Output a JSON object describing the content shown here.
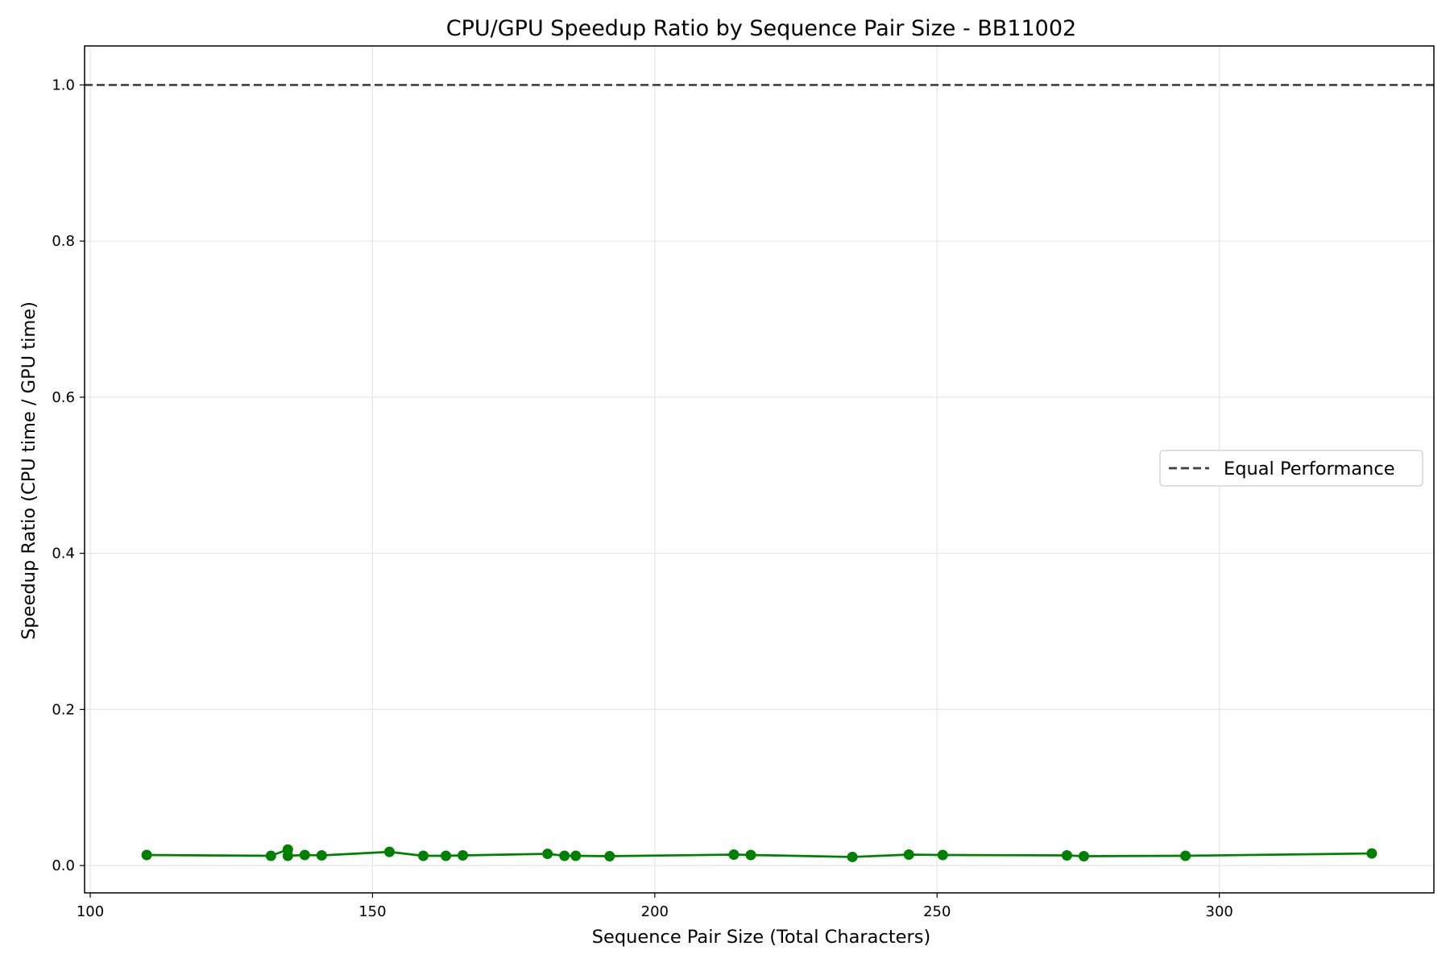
{
  "chart_data": {
    "type": "line",
    "title": "CPU/GPU Speedup Ratio by Sequence Pair Size - BB11002",
    "xlabel": "Sequence Pair Size (Total Characters)",
    "ylabel": "Speedup Ratio (CPU time / GPU time)",
    "xlim": [
      99,
      338
    ],
    "ylim": [
      -0.035,
      1.05
    ],
    "xticks": [
      100,
      150,
      200,
      250,
      300
    ],
    "xtick_labels": [
      "100",
      "150",
      "200",
      "250",
      "300"
    ],
    "yticks": [
      0.0,
      0.2,
      0.4,
      0.6,
      0.8,
      1.0
    ],
    "ytick_labels": [
      "0.0",
      "0.2",
      "0.4",
      "0.6",
      "0.8",
      "1.0"
    ],
    "grid": true,
    "legend_position": "center-right",
    "series": [
      {
        "color": "#008000",
        "marker": "circle",
        "x": [
          110,
          132,
          135,
          135,
          138,
          141,
          153,
          159,
          163,
          166,
          181,
          184,
          186,
          192,
          214,
          217,
          235,
          245,
          251,
          273,
          276,
          294,
          327
        ],
        "y": [
          0.0135,
          0.0125,
          0.0205,
          0.0125,
          0.0135,
          0.013,
          0.0175,
          0.0125,
          0.0125,
          0.013,
          0.015,
          0.0125,
          0.0125,
          0.012,
          0.014,
          0.0135,
          0.011,
          0.014,
          0.0135,
          0.013,
          0.012,
          0.0125,
          0.0155
        ]
      }
    ],
    "reference_lines": [
      {
        "name": "Equal Performance",
        "y": 1.0,
        "style": "dashed",
        "color": "#404040"
      }
    ]
  }
}
